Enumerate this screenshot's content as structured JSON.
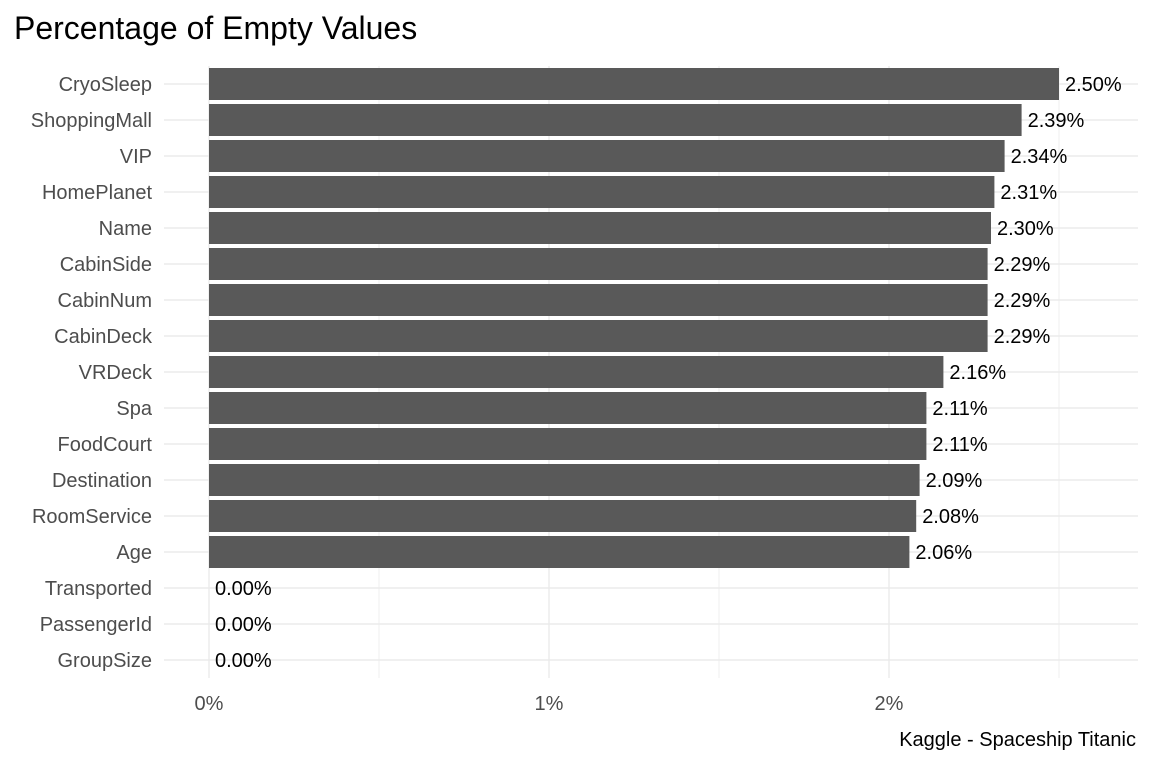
{
  "chart_data": {
    "type": "bar",
    "orientation": "horizontal",
    "title": "Percentage of Empty Values",
    "caption": "Kaggle - Spaceship Titanic",
    "xlabel": "",
    "ylabel": "",
    "xlim": [
      0,
      2.65
    ],
    "x_ticks": [
      0,
      1,
      2
    ],
    "x_tick_labels": [
      "0%",
      "1%",
      "2%"
    ],
    "grid": true,
    "categories": [
      "CryoSleep",
      "ShoppingMall",
      "VIP",
      "HomePlanet",
      "Name",
      "CabinSide",
      "CabinNum",
      "CabinDeck",
      "VRDeck",
      "Spa",
      "FoodCourt",
      "Destination",
      "RoomService",
      "Age",
      "Transported",
      "PassengerId",
      "GroupSize"
    ],
    "values": [
      2.5,
      2.39,
      2.34,
      2.31,
      2.3,
      2.29,
      2.29,
      2.29,
      2.16,
      2.11,
      2.11,
      2.09,
      2.08,
      2.06,
      0.0,
      0.0,
      0.0
    ],
    "value_labels": [
      "2.50%",
      "2.39%",
      "2.34%",
      "2.31%",
      "2.30%",
      "2.29%",
      "2.29%",
      "2.29%",
      "2.16%",
      "2.11%",
      "2.11%",
      "2.09%",
      "2.08%",
      "2.06%",
      "0.00%",
      "0.00%",
      "0.00%"
    ],
    "bar_color": "#595959",
    "grid_color": "#ebebeb"
  }
}
